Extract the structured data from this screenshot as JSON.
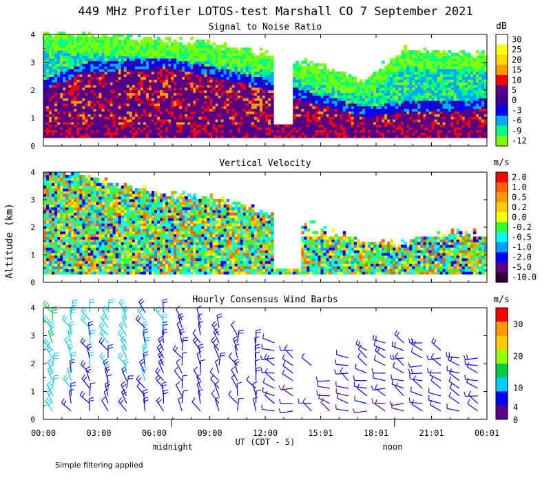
{
  "title": "449 MHz Profiler LOTOS-test Marshall CO  7 September 2021",
  "ylabel": "Altitude (km)",
  "xlabel": "UT (CDT - 5)",
  "x_ticks": [
    "00:00",
    "03:00",
    "06:00",
    "09:00",
    "12:00",
    "15:01",
    "18:01",
    "21:01",
    "00:01"
  ],
  "x_annotations": [
    "midnight",
    "noon"
  ],
  "footnote": "Simple filtering applied",
  "chart_data": [
    {
      "type": "heatmap",
      "title": "Signal to Noise Ratio",
      "unit": "dB",
      "ylim": [
        0,
        4
      ],
      "y_ticks": [
        "0",
        "1",
        "2",
        "3",
        "4"
      ],
      "colorbar_labels": [
        "30",
        "25",
        "20",
        "15",
        "10",
        "5",
        "0",
        "-3",
        "-6",
        "-9",
        "-12"
      ],
      "colors": [
        "#ffffff",
        "#ffff00",
        "#ffd800",
        "#ff9900",
        "#ff0000",
        "#5a0082",
        "#3c0096",
        "#0000ff",
        "#00aaff",
        "#00ff80",
        "#80ff00"
      ],
      "cloud_top_km": [
        3.9,
        3.8,
        3.7,
        3.6,
        3.5,
        3.3,
        3.0,
        2.6,
        2.2,
        3.3,
        3.2,
        3.1
      ],
      "core_top_km": [
        2.0,
        2.6,
        2.7,
        2.8,
        2.5,
        2.2,
        1.8,
        1.4,
        1.0,
        1.2,
        1.2,
        1.3
      ]
    },
    {
      "type": "heatmap",
      "title": "Vertical Velocity",
      "unit": "m/s",
      "ylim": [
        0,
        4
      ],
      "y_ticks": [
        "0",
        "1",
        "2",
        "3",
        "4"
      ],
      "colorbar_labels": [
        "2.0",
        "1.0",
        "0.5",
        "0.2",
        "0.0",
        "-0.2",
        "-0.5",
        "-1.0",
        "-2.0",
        "-5.0",
        "-10.0"
      ],
      "colors": [
        "#ff0000",
        "#ff6000",
        "#ff9900",
        "#ffcc00",
        "#ffff00",
        "#33ff33",
        "#00ffff",
        "#00a0ff",
        "#0000ff",
        "#5a0082",
        "#330033"
      ],
      "echo_top_km": [
        4.0,
        3.7,
        3.3,
        3.0,
        2.9,
        2.6,
        2.2,
        1.9,
        1.3,
        1.2,
        1.8,
        1.6
      ]
    },
    {
      "type": "scatter",
      "title": "Hourly Consensus Wind Barbs",
      "unit": "m/s",
      "ylim": [
        0,
        4
      ],
      "y_ticks": [
        "0",
        "1",
        "2",
        "3",
        "4"
      ],
      "colorbar_labels": [
        "30",
        "20",
        "10",
        "4",
        "0"
      ],
      "colors": [
        "#ff0000",
        "#ff9900",
        "#ffcc00",
        "#99ff00",
        "#00cc44",
        "#00ccff",
        "#0000ff",
        "#5a0082"
      ],
      "speed_stops_ms": [
        35,
        30,
        25,
        20,
        15,
        10,
        4,
        0
      ],
      "top_km_by_hour": [
        4.0,
        4.0,
        4.0,
        4.0,
        4.0,
        4.0,
        4.0,
        3.8,
        3.6,
        3.4,
        3.2,
        3.0,
        2.8,
        2.6,
        2.0,
        1.5,
        2.2,
        2.6,
        3.0,
        3.0,
        3.0,
        2.6,
        2.4,
        2.2
      ],
      "low_speed_ms": [
        12,
        8,
        6,
        6,
        8,
        8,
        8,
        6,
        6,
        6,
        6,
        5,
        5,
        4,
        3,
        2,
        3,
        3,
        2,
        3,
        4,
        4,
        4,
        4
      ],
      "high_speed_ms": [
        15,
        14,
        12,
        12,
        12,
        10,
        10,
        9,
        8,
        8,
        9,
        9,
        8,
        8,
        6,
        4,
        8,
        10,
        12,
        12,
        12,
        10,
        10,
        10
      ]
    }
  ]
}
